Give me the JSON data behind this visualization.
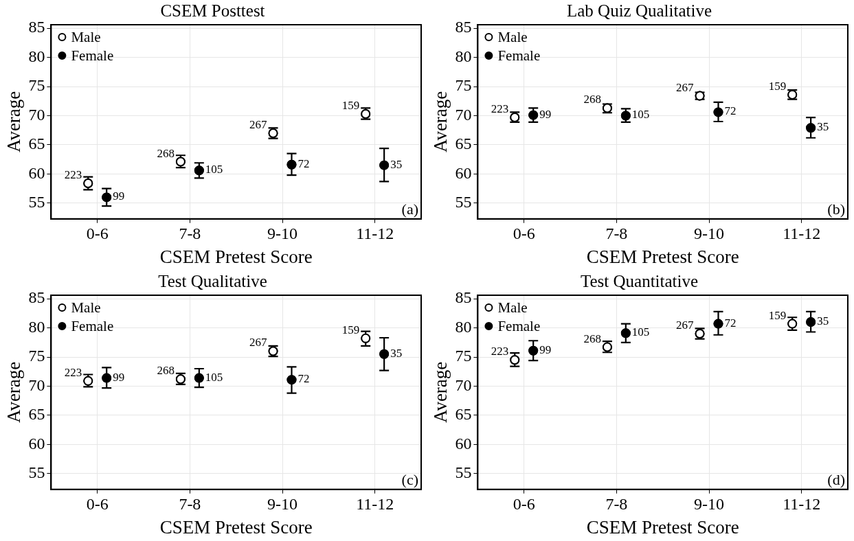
{
  "chart_data": [
    {
      "type": "scatter",
      "title": "CSEM Posttest",
      "xlabel": "CSEM Pretest Score",
      "ylabel": "Average",
      "categories": [
        "0-6",
        "7-8",
        "9-10",
        "11-12"
      ],
      "ylim": [
        52.3,
        85.6
      ],
      "yticks": [
        55,
        60,
        65,
        70,
        75,
        80,
        85
      ],
      "grid": true,
      "legend": "top left",
      "series": [
        {
          "name": "Male",
          "color": "#000000",
          "values": [
            58.4,
            62.1,
            67.0,
            70.3
          ],
          "errors": [
            [
              57.3,
              59.5
            ],
            [
              61.1,
              63.2
            ],
            [
              66.1,
              67.9
            ],
            [
              69.4,
              71.3
            ]
          ]
        },
        {
          "name": "Female",
          "color": "#000000",
          "values": [
            56.0,
            60.6,
            61.6,
            61.5
          ],
          "errors": [
            [
              54.5,
              57.5
            ],
            [
              59.3,
              61.9
            ],
            [
              59.8,
              63.5
            ],
            [
              58.7,
              64.4
            ]
          ]
        }
      ],
      "annotations": [
        "223",
        "99",
        "268",
        "105",
        "267",
        "72",
        "159",
        "35",
        "(a)"
      ]
    },
    {
      "type": "scatter",
      "title": "Lab Quiz Qualitative",
      "xlabel": "CSEM Pretest Score",
      "ylabel": "Average",
      "categories": [
        "0-6",
        "7-8",
        "9-10",
        "11-12"
      ],
      "ylim": [
        52.3,
        85.6
      ],
      "yticks": [
        55,
        60,
        65,
        70,
        75,
        80,
        85
      ],
      "grid": true,
      "legend": "top left",
      "series": [
        {
          "name": "Male",
          "color": "#000000",
          "values": [
            69.7,
            71.3,
            73.4,
            73.6
          ],
          "errors": [
            [
              68.9,
              70.6
            ],
            [
              70.5,
              72.0
            ],
            [
              72.8,
              74.0
            ],
            [
              72.8,
              74.4
            ]
          ]
        },
        {
          "name": "Female",
          "color": "#000000",
          "values": [
            70.1,
            70.0,
            70.6,
            67.9
          ],
          "errors": [
            [
              68.9,
              71.3
            ],
            [
              68.9,
              71.2
            ],
            [
              69.0,
              72.3
            ],
            [
              66.2,
              69.7
            ]
          ]
        }
      ],
      "annotations": [
        "223",
        "99",
        "268",
        "105",
        "267",
        "72",
        "159",
        "35",
        "(b)"
      ]
    },
    {
      "type": "scatter",
      "title": "Test Qualitative",
      "xlabel": "CSEM Pretest Score",
      "ylabel": "Average",
      "categories": [
        "0-6",
        "7-8",
        "9-10",
        "11-12"
      ],
      "ylim": [
        52.3,
        85.6
      ],
      "yticks": [
        55,
        60,
        65,
        70,
        75,
        80,
        85
      ],
      "grid": true,
      "legend": "top left",
      "series": [
        {
          "name": "Male",
          "color": "#000000",
          "values": [
            70.9,
            71.2,
            76.0,
            78.2
          ],
          "errors": [
            [
              69.9,
              72.0
            ],
            [
              70.3,
              72.2
            ],
            [
              75.1,
              76.9
            ],
            [
              76.9,
              79.4
            ]
          ]
        },
        {
          "name": "Female",
          "color": "#000000",
          "values": [
            71.4,
            71.4,
            71.1,
            75.5
          ],
          "errors": [
            [
              69.7,
              73.2
            ],
            [
              69.8,
              73.0
            ],
            [
              68.8,
              73.3
            ],
            [
              72.7,
              78.3
            ]
          ]
        }
      ],
      "annotations": [
        "223",
        "99",
        "268",
        "105",
        "267",
        "72",
        "159",
        "35",
        "(c)"
      ]
    },
    {
      "type": "scatter",
      "title": "Test Quantitative",
      "xlabel": "CSEM Pretest Score",
      "ylabel": "Average",
      "categories": [
        "0-6",
        "7-8",
        "9-10",
        "11-12"
      ],
      "ylim": [
        52.3,
        85.6
      ],
      "yticks": [
        55,
        60,
        65,
        70,
        75,
        80,
        85
      ],
      "grid": true,
      "legend": "top left",
      "series": [
        {
          "name": "Male",
          "color": "#000000",
          "values": [
            74.5,
            76.7,
            79.0,
            80.7
          ],
          "errors": [
            [
              73.4,
              75.7
            ],
            [
              75.8,
              77.7
            ],
            [
              78.1,
              79.9
            ],
            [
              79.6,
              81.8
            ]
          ]
        },
        {
          "name": "Female",
          "color": "#000000",
          "values": [
            76.1,
            79.1,
            80.7,
            81.0
          ],
          "errors": [
            [
              74.4,
              77.8
            ],
            [
              77.5,
              80.7
            ],
            [
              78.8,
              82.8
            ],
            [
              79.3,
              82.8
            ]
          ]
        }
      ],
      "annotations": [
        "223",
        "99",
        "268",
        "105",
        "267",
        "72",
        "159",
        "35",
        "(d)"
      ]
    }
  ]
}
